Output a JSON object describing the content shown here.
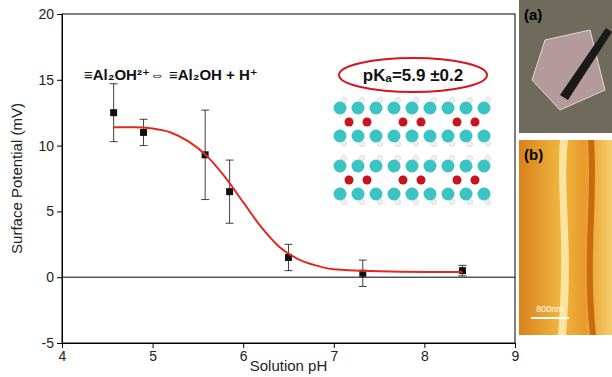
{
  "chart_data": {
    "type": "scatter",
    "x_label": "Solution pH",
    "y_label": "Surface Potential (mV)",
    "xlim": [
      4,
      9
    ],
    "xticks": [
      4,
      5,
      6,
      7,
      8,
      9
    ],
    "ylim": [
      -5,
      20
    ],
    "yticks": [
      -5,
      0,
      5,
      10,
      15,
      20
    ],
    "reference_lines": [
      0
    ],
    "series": [
      {
        "type": "scatter",
        "marker": "square",
        "color": "#111111",
        "x": [
          4.57,
          4.9,
          5.58,
          5.85,
          6.5,
          7.32,
          8.42
        ],
        "values": [
          12.5,
          11.0,
          9.3,
          6.5,
          1.5,
          0.3,
          0.5
        ],
        "error": [
          2.2,
          1.0,
          3.4,
          2.4,
          1.0,
          1.0,
          0.4
        ]
      },
      {
        "type": "line",
        "color": "#e02a1e",
        "x": [
          4.57,
          4.8,
          5.0,
          5.2,
          5.4,
          5.6,
          5.8,
          6.0,
          6.2,
          6.4,
          6.6,
          6.8,
          7.0,
          7.5,
          8.0,
          8.42
        ],
        "values": [
          11.4,
          11.4,
          11.3,
          11.0,
          10.3,
          9.2,
          7.6,
          5.7,
          3.8,
          2.3,
          1.4,
          0.9,
          0.6,
          0.45,
          0.4,
          0.4
        ]
      }
    ],
    "annotations": [
      "≡Al₂OH²⁺⇔ ≡Al₂OH + H⁺",
      "pKₐ=5.9 ±0.2"
    ],
    "image_labels": [
      "(a)",
      "(b)"
    ],
    "scale_bar": "800nm"
  }
}
